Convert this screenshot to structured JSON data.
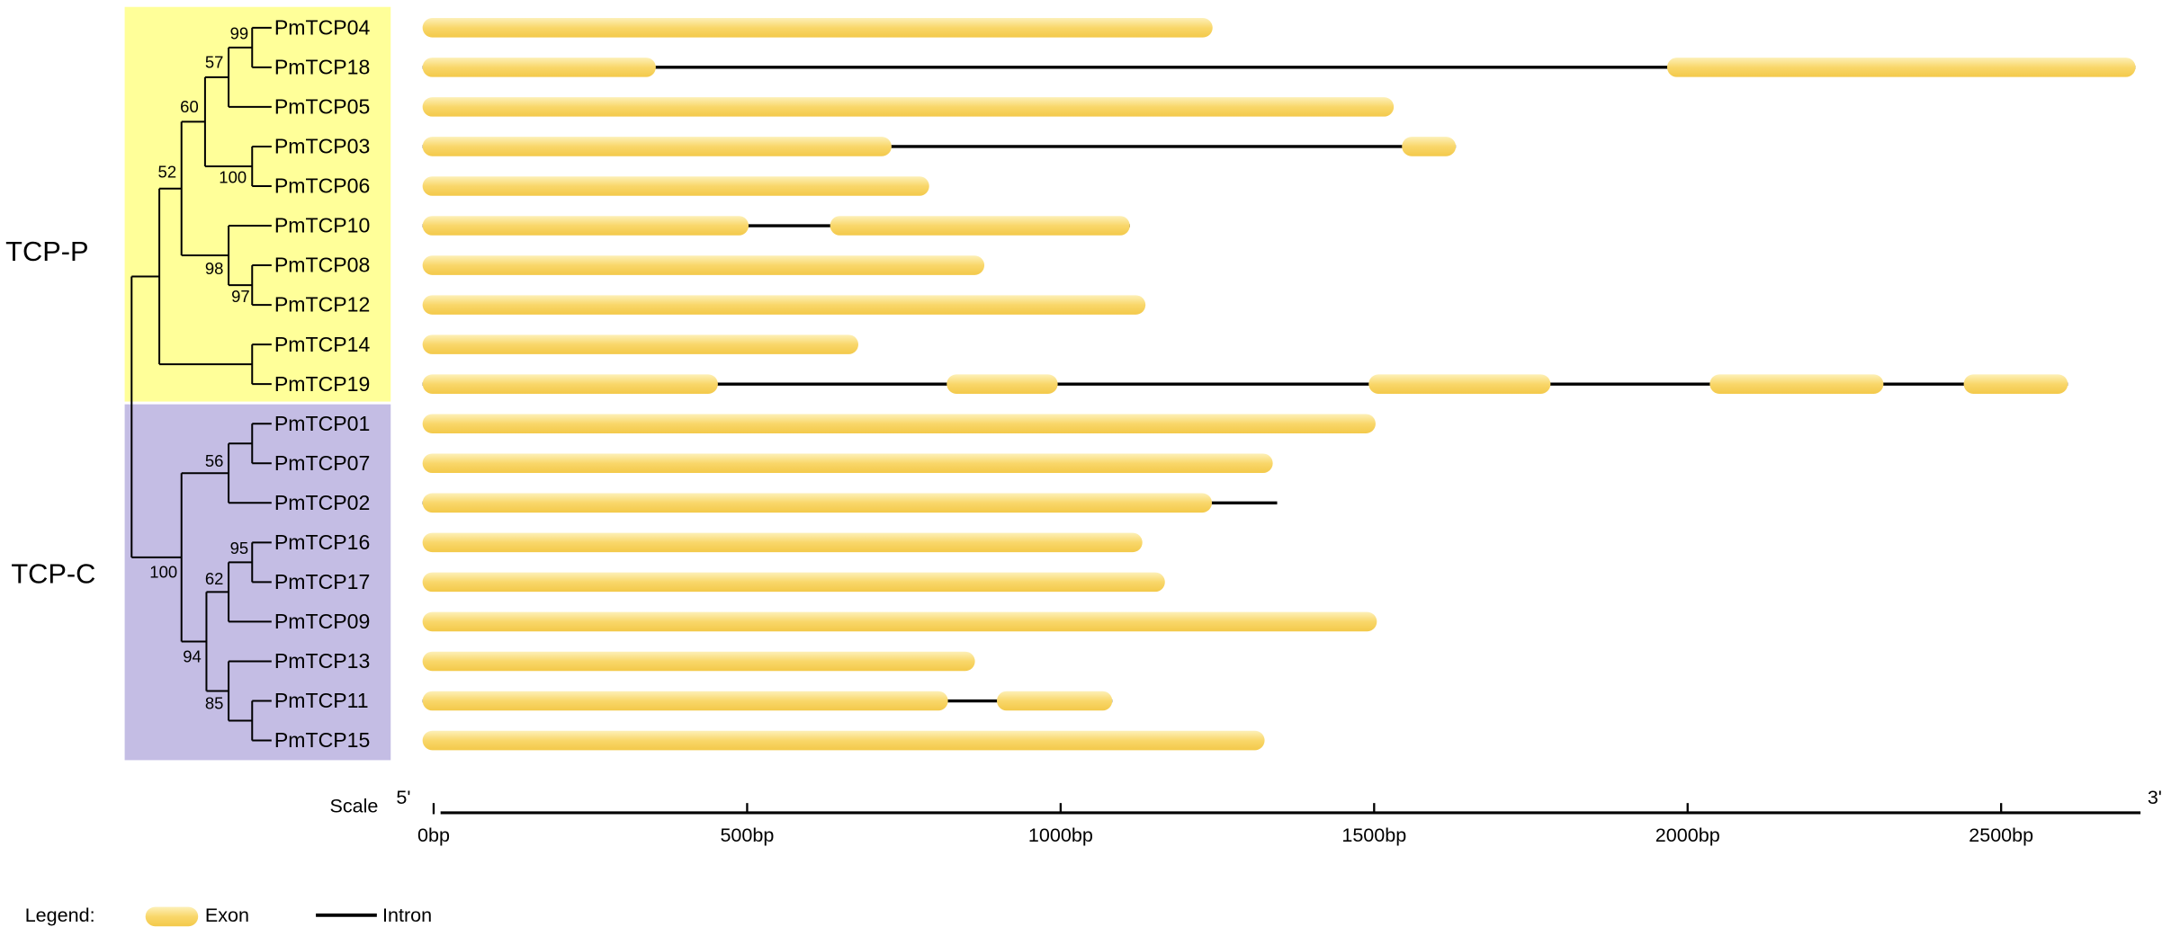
{
  "groups": [
    {
      "name": "TCP-P"
    },
    {
      "name": "TCP-C"
    }
  ],
  "genes": [
    {
      "name": "PmTCP04",
      "exons": [
        [
          0,
          1260
        ]
      ]
    },
    {
      "name": "PmTCP18",
      "exons": [
        [
          0,
          372
        ],
        [
          1985,
          2732
        ]
      ]
    },
    {
      "name": "PmTCP05",
      "exons": [
        [
          0,
          1549
        ]
      ]
    },
    {
      "name": "PmTCP03",
      "exons": [
        [
          0,
          748
        ],
        [
          1562,
          1648
        ]
      ]
    },
    {
      "name": "PmTCP06",
      "exons": [
        [
          0,
          808
        ]
      ]
    },
    {
      "name": "PmTCP10",
      "exons": [
        [
          0,
          520
        ],
        [
          650,
          1128
        ]
      ]
    },
    {
      "name": "PmTCP08",
      "exons": [
        [
          0,
          896
        ]
      ]
    },
    {
      "name": "PmTCP12",
      "exons": [
        [
          0,
          1153
        ]
      ]
    },
    {
      "name": "PmTCP14",
      "exons": [
        [
          0,
          695
        ]
      ]
    },
    {
      "name": "PmTCP19",
      "exons": [
        [
          0,
          471
        ],
        [
          836,
          1013
        ],
        [
          1509,
          1799
        ],
        [
          2053,
          2330
        ],
        [
          2458,
          2624
        ]
      ]
    },
    {
      "name": "PmTCP01",
      "exons": [
        [
          0,
          1520
        ]
      ]
    },
    {
      "name": "PmTCP07",
      "exons": [
        [
          0,
          1356
        ]
      ]
    },
    {
      "name": "PmTCP02",
      "exons": [
        [
          0,
          1259
        ]
      ],
      "length": 1363
    },
    {
      "name": "PmTCP16",
      "exons": [
        [
          0,
          1148
        ]
      ]
    },
    {
      "name": "PmTCP17",
      "exons": [
        [
          0,
          1184
        ]
      ]
    },
    {
      "name": "PmTCP09",
      "exons": [
        [
          0,
          1522
        ]
      ]
    },
    {
      "name": "PmTCP13",
      "exons": [
        [
          0,
          881
        ]
      ]
    },
    {
      "name": "PmTCP11",
      "exons": [
        [
          0,
          838
        ],
        [
          916,
          1100
        ]
      ]
    },
    {
      "name": "PmTCP15",
      "exons": [
        [
          0,
          1343
        ]
      ]
    }
  ],
  "bootstraps": [
    99,
    57,
    60,
    100,
    52,
    98,
    97,
    56,
    95,
    62,
    100,
    94,
    85
  ],
  "scale": {
    "label": "Scale",
    "start": "5'",
    "end": "3'",
    "xlim": [
      0,
      2740
    ],
    "xticks": [
      {
        "value": 0,
        "label": "0bp"
      },
      {
        "value": 500,
        "label": "500bp"
      },
      {
        "value": 1000,
        "label": "1000bp"
      },
      {
        "value": 1500,
        "label": "1500bp"
      },
      {
        "value": 2000,
        "label": "2000bp"
      },
      {
        "value": 2500,
        "label": "2500bp"
      }
    ]
  },
  "legend": {
    "title": "Legend:",
    "exon": "Exon",
    "intron": "Intron"
  }
}
